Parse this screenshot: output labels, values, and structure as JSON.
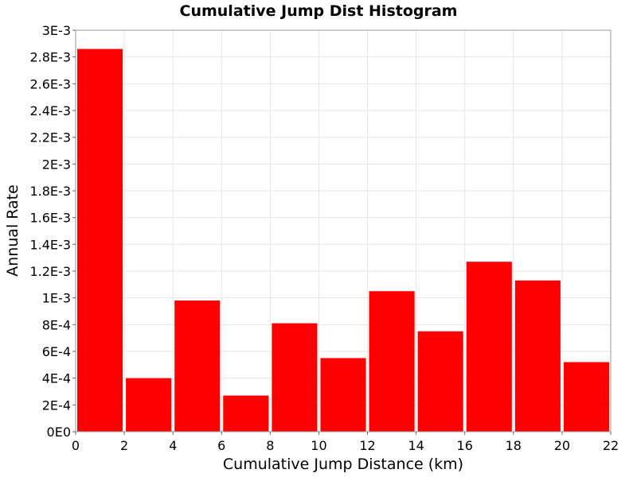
{
  "chart_data": {
    "type": "bar",
    "title": "Cumulative Jump Dist Histogram",
    "xlabel": "Cumulative Jump Distance (km)",
    "ylabel": "Annual Rate",
    "xlim": [
      0,
      22
    ],
    "ylim": [
      0,
      0.003
    ],
    "bin_width": 2,
    "grid": true,
    "legend": "none",
    "bar_color": "#ff0000",
    "x_ticks": [
      {
        "value": 0,
        "label": "0"
      },
      {
        "value": 2,
        "label": "2"
      },
      {
        "value": 4,
        "label": "4"
      },
      {
        "value": 6,
        "label": "6"
      },
      {
        "value": 8,
        "label": "8"
      },
      {
        "value": 10,
        "label": "10"
      },
      {
        "value": 12,
        "label": "12"
      },
      {
        "value": 14,
        "label": "14"
      },
      {
        "value": 16,
        "label": "16"
      },
      {
        "value": 18,
        "label": "18"
      },
      {
        "value": 20,
        "label": "20"
      },
      {
        "value": 22,
        "label": "22"
      }
    ],
    "y_ticks": [
      {
        "value": 0,
        "label": "0E0"
      },
      {
        "value": 0.0002,
        "label": "2E-4"
      },
      {
        "value": 0.0004,
        "label": "4E-4"
      },
      {
        "value": 0.0006,
        "label": "6E-4"
      },
      {
        "value": 0.0008,
        "label": "8E-4"
      },
      {
        "value": 0.001,
        "label": "1E-3"
      },
      {
        "value": 0.0012,
        "label": "1.2E-3"
      },
      {
        "value": 0.0014,
        "label": "1.4E-3"
      },
      {
        "value": 0.0016,
        "label": "1.6E-3"
      },
      {
        "value": 0.0018,
        "label": "1.8E-3"
      },
      {
        "value": 0.002,
        "label": "2E-3"
      },
      {
        "value": 0.0022,
        "label": "2.2E-3"
      },
      {
        "value": 0.0024,
        "label": "2.4E-3"
      },
      {
        "value": 0.0026,
        "label": "2.6E-3"
      },
      {
        "value": 0.0028,
        "label": "2.8E-3"
      },
      {
        "value": 0.003,
        "label": "3E-3"
      }
    ],
    "bins": [
      {
        "x": 1,
        "value": 0.00286
      },
      {
        "x": 3,
        "value": 0.0004
      },
      {
        "x": 5,
        "value": 0.00098
      },
      {
        "x": 7,
        "value": 0.00027
      },
      {
        "x": 9,
        "value": 0.00081
      },
      {
        "x": 11,
        "value": 0.00055
      },
      {
        "x": 13,
        "value": 0.00105
      },
      {
        "x": 15,
        "value": 0.00075
      },
      {
        "x": 17,
        "value": 0.00127
      },
      {
        "x": 19,
        "value": 0.00113
      },
      {
        "x": 21,
        "value": 0.00052
      }
    ]
  }
}
